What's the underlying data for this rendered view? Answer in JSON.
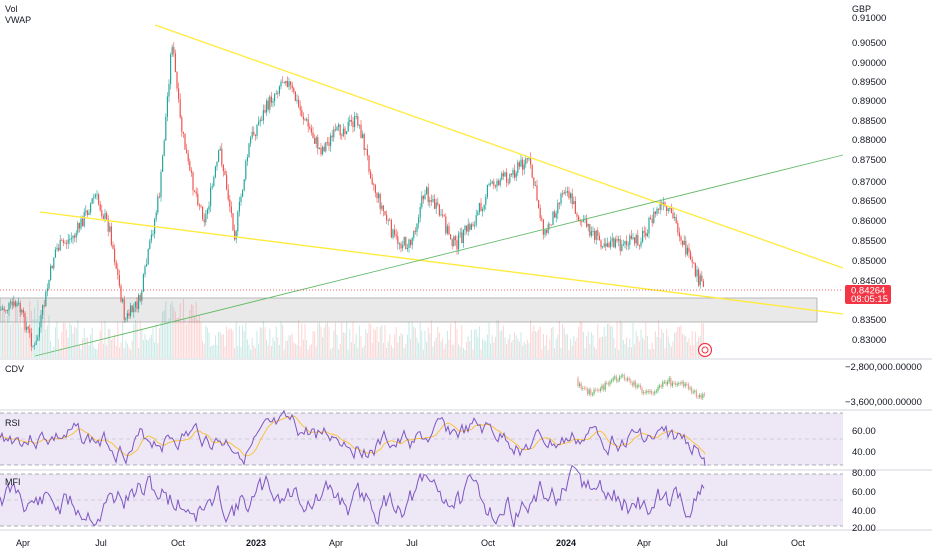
{
  "legend": {
    "vol": "Vol",
    "vwap": "VWAP",
    "currency": "GBP"
  },
  "price_axis": {
    "ticks": [
      "0.91000",
      "0.90500",
      "0.90000",
      "0.89500",
      "0.89000",
      "0.88500",
      "0.88000",
      "0.87500",
      "0.87000",
      "0.86500",
      "0.86000",
      "0.85500",
      "0.85000",
      "0.84500",
      "0.83500",
      "0.83000"
    ],
    "current_price": "0.84264",
    "countdown": "08:05:15"
  },
  "cdv": {
    "label": "CDV",
    "ticks": [
      "−2,800,000.00000",
      "−3,600,000.00000"
    ]
  },
  "rsi": {
    "label": "RSI",
    "ticks": [
      "60.00",
      "40.00"
    ]
  },
  "mfi": {
    "label": "MFI",
    "ticks": [
      "80.00",
      "60.00",
      "40.00",
      "20.00"
    ]
  },
  "time_axis": [
    {
      "label": "Apr",
      "bold": false
    },
    {
      "label": "Jul",
      "bold": false
    },
    {
      "label": "Oct",
      "bold": false
    },
    {
      "label": "2023",
      "bold": true
    },
    {
      "label": "Apr",
      "bold": false
    },
    {
      "label": "Jul",
      "bold": false
    },
    {
      "label": "Oct",
      "bold": false
    },
    {
      "label": "2024",
      "bold": true
    },
    {
      "label": "Apr",
      "bold": false
    },
    {
      "label": "Jul",
      "bold": false
    },
    {
      "label": "Oct",
      "bold": false
    }
  ],
  "colors": {
    "up": "#26a69a",
    "down": "#ef5350",
    "trendline": "#ffeb3b",
    "green_trend": "#4caf50",
    "oscillator": "#7e57c2",
    "price_tag": "#f23645",
    "pane_fill": "#ede7f6"
  }
}
